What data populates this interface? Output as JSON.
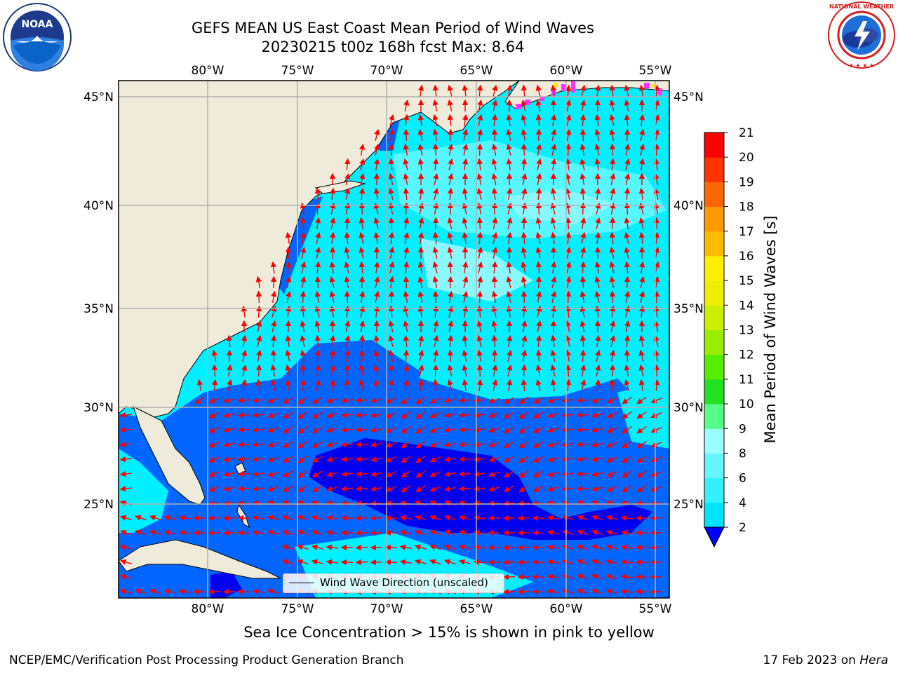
{
  "header": {
    "title_line1": "GEFS MEAN US East Coast Mean Period of Wind Waves",
    "title_line2": "20230215 t00z 168h fcst   Max: 8.64"
  },
  "logos": {
    "left": "NOAA",
    "left_ring_text": "NATIONAL OCEANIC AND ATMOSPHERIC ADMINISTRATION · U.S. DEPARTMENT OF COMMERCE",
    "right_ring_text": "NATIONAL WEATHER SERVICE"
  },
  "map": {
    "lon_labels": [
      "80°W",
      "75°W",
      "70°W",
      "65°W",
      "60°W",
      "55°W"
    ],
    "lat_labels": [
      "45°N",
      "40°N",
      "35°N",
      "30°N",
      "25°N"
    ],
    "legend_label": "Wind Wave Direction (unscaled)",
    "vector_color": "#ff0000",
    "land_color": "#efebdb"
  },
  "colorbar": {
    "label": "Mean Period of Wind Waves [s]",
    "ticks": [
      "2",
      "4",
      "6",
      "8",
      "9",
      "10",
      "11",
      "12",
      "13",
      "14",
      "15",
      "16",
      "17",
      "18",
      "19",
      "20",
      "21"
    ],
    "colors": [
      "#0066ff",
      "#00e5ff",
      "#33f0ff",
      "#66f5ff",
      "#99ffff",
      "#55ff88",
      "#22e022",
      "#55ee00",
      "#99ee00",
      "#ccee00",
      "#eeee00",
      "#ffee00",
      "#ffbb00",
      "#ff9900",
      "#ff6600",
      "#ff3300",
      "#ff0000"
    ],
    "under_color": "#0000ff"
  },
  "notes": {
    "ice": "Sea Ice Concentration > 15% is shown in pink to yellow",
    "footer_left": "NCEP/EMC/Verification Post Processing Product Generation Branch",
    "footer_date": "17 Feb 2023 on ",
    "footer_machine": "Hera"
  }
}
